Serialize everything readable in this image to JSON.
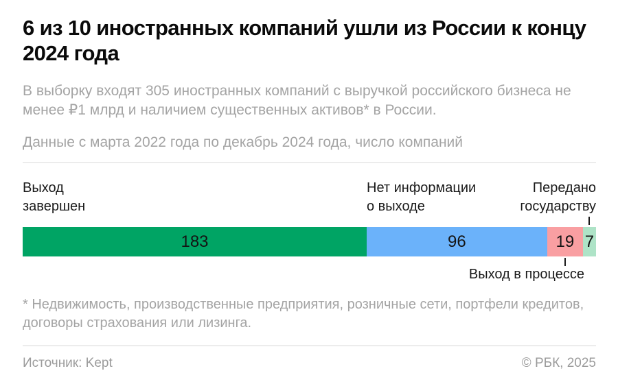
{
  "header": {
    "title": "6 из 10 иностранных компаний ушли из России к концу 2024 года",
    "subtitle": "В выборку входят 305 иностранных компаний с выручкой российского бизнеса не менее ₽1 млрд и наличием существенных активов* в России.",
    "note": "Данные с марта 2022 года по декабрь 2024 года, число компаний"
  },
  "chart_data": {
    "type": "bar",
    "subtype": "horizontal-stacked",
    "title": "6 из 10 иностранных компаний ушли из России к концу 2024 года",
    "units": "число компаний",
    "total": 305,
    "categories": [
      "Выход завершен",
      "Нет информации о выходе",
      "Выход в процессе",
      "Передано государству"
    ],
    "values": [
      183,
      96,
      19,
      7
    ],
    "colors": [
      "#00a464",
      "#6bb2fa",
      "#f99fa2",
      "#aee3c7"
    ],
    "value_labels": [
      "183",
      "96",
      "19",
      "7"
    ],
    "legend_position": "labels-around-bar",
    "grid": false
  },
  "bar_labels": {
    "exit_completed": {
      "line1": "Выход",
      "line2": "завершен"
    },
    "no_info": {
      "line1": "Нет информации",
      "line2": "о выходе"
    },
    "transferred": {
      "line1": "Передано",
      "line2": "государству"
    },
    "in_progress": "Выход в процессе"
  },
  "footnote": "* Недвижимость, производственные предприятия, розничные сети, портфели кредитов, договоры страхования или лизинга.",
  "footer": {
    "source": "Источник: Kept",
    "copyright": "© РБК, 2025"
  }
}
